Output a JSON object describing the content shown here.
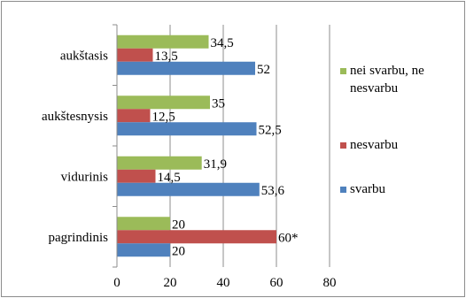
{
  "chart_data": {
    "type": "bar",
    "orientation": "horizontal",
    "categories": [
      "aukštasis",
      "aukštesnysis",
      "vidurinis",
      "pagrindinis"
    ],
    "series": [
      {
        "name": "nei svarbu, ne nesvarbu",
        "legend_lines": [
          "nei svarbu, ne",
          "nesvarbu"
        ],
        "color": "#9BBB59",
        "values": [
          34.5,
          35,
          31.9,
          20
        ],
        "labels": [
          "34,5",
          "35",
          "31,9",
          "20"
        ]
      },
      {
        "name": "nesvarbu",
        "legend_lines": [
          "nesvarbu"
        ],
        "color": "#C0504D",
        "values": [
          13.5,
          12.5,
          14.5,
          60
        ],
        "labels": [
          "13,5",
          "12,5",
          "14,5",
          "60*"
        ]
      },
      {
        "name": "svarbu",
        "legend_lines": [
          "svarbu"
        ],
        "color": "#4F81BD",
        "values": [
          52,
          52.5,
          53.6,
          20
        ],
        "labels": [
          "52",
          "52,5",
          "53,6",
          "20"
        ]
      }
    ],
    "xlim": [
      0,
      80
    ],
    "xticks": [
      0,
      20,
      40,
      60,
      80
    ],
    "vertical_gridlines": true,
    "legend_position": "right",
    "title": "",
    "xlabel": "",
    "ylabel": ""
  }
}
